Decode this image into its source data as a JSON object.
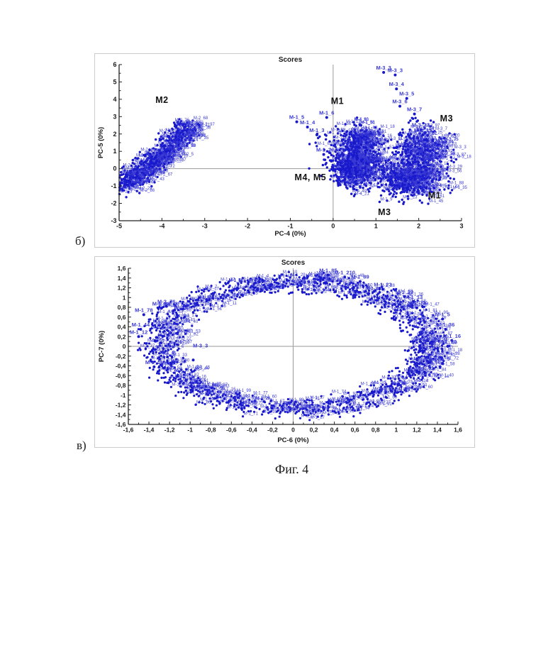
{
  "figure": {
    "sublabels": [
      "б)",
      "в)"
    ],
    "caption": "Фиг. 4"
  },
  "colors": {
    "point": "#1818cc",
    "point_label": "#3c3cd4",
    "axis": "#222222",
    "zero_line": "#9a9a9a",
    "annotation": "#111111",
    "frame": "#cccccc"
  },
  "chart_data": [
    {
      "type": "scatter",
      "title": "Scores",
      "xlabel": "PC-4 (0%)",
      "ylabel": "PC-5 (0%)",
      "xlim": [
        -5,
        3
      ],
      "ylim": [
        -3,
        6
      ],
      "xtick_values": [
        -5,
        -4,
        -3,
        -2,
        -1,
        0,
        1,
        2,
        3
      ],
      "xtick_labels": [
        "-5",
        "-4",
        "-3",
        "-2",
        "-1",
        "0",
        "1",
        "2",
        "3"
      ],
      "ytick_values": [
        -3,
        -2,
        -1,
        0,
        1,
        2,
        3,
        4,
        5,
        6
      ],
      "ytick_labels": [
        "-3",
        "-2",
        "-1",
        "0",
        "1",
        "2",
        "3",
        "4",
        "5",
        "6"
      ],
      "minor_step": 0.5,
      "grid": false,
      "zero_lines": true,
      "legend": "none",
      "point_radius": 1.7,
      "clusters": [
        {
          "name": "M2-band",
          "shape": "band",
          "label_prefix": "M-2",
          "seed": 11,
          "count": 520,
          "label_fraction": 0.45,
          "from": [
            -4.95,
            -1.0
          ],
          "to": [
            -3.35,
            2.5
          ],
          "spread": [
            0.17,
            0.3
          ],
          "sag": 0.25
        },
        {
          "name": "M4-M5-core",
          "shape": "gauss",
          "label_prefix": "M-4",
          "seed": 21,
          "count": 500,
          "label_fraction": 0.4,
          "center": [
            0.45,
            0.1
          ],
          "sigma": [
            0.27,
            0.62
          ]
        },
        {
          "name": "M1-upper-mid",
          "shape": "gauss",
          "label_prefix": "M-1",
          "seed": 22,
          "count": 240,
          "label_fraction": 0.45,
          "center": [
            0.62,
            1.5
          ],
          "sigma": [
            0.3,
            0.5
          ]
        },
        {
          "name": "right-core-M1",
          "shape": "gauss",
          "label_prefix": "M-1",
          "seed": 31,
          "count": 430,
          "label_fraction": 0.4,
          "center": [
            1.75,
            -0.6
          ],
          "sigma": [
            0.4,
            0.55
          ]
        },
        {
          "name": "right-upper-M3",
          "shape": "gauss",
          "label_prefix": "M-3",
          "seed": 32,
          "count": 300,
          "label_fraction": 0.45,
          "center": [
            2.0,
            1.0
          ],
          "sigma": [
            0.33,
            0.65
          ]
        },
        {
          "name": "strays-left",
          "shape": "gauss",
          "label_prefix": "M-1",
          "seed": 41,
          "count": 5,
          "label_fraction": 0,
          "center": [
            -0.33,
            1.7
          ],
          "sigma": [
            0.14,
            0.22
          ]
        },
        {
          "name": "strays-m3-trail",
          "shape": "gauss",
          "label_prefix": "M-3",
          "seed": 42,
          "count": 6,
          "label_fraction": 0,
          "center": [
            1.88,
            2.8
          ],
          "sigma": [
            0.08,
            0.12
          ]
        }
      ],
      "labeled_points": [
        {
          "label": "M-1_5",
          "x": -0.85,
          "y": 2.7
        },
        {
          "label": "M-1_4",
          "x": -0.6,
          "y": 2.4
        },
        {
          "label": "M-1_6",
          "x": -0.15,
          "y": 2.95
        },
        {
          "label": "M-1_3",
          "x": -0.38,
          "y": 1.95
        },
        {
          "label": "M-1_2",
          "x": -0.22,
          "y": 0.82
        },
        {
          "label": "M-3_3",
          "x": 1.18,
          "y": 5.55
        },
        {
          "label": "M-3_3",
          "x": 1.45,
          "y": 5.4
        },
        {
          "label": "M-3_4",
          "x": 1.48,
          "y": 4.6
        },
        {
          "label": "M-3_5",
          "x": 1.72,
          "y": 4.05
        },
        {
          "label": "M-3_6",
          "x": 1.56,
          "y": 3.6
        },
        {
          "label": "M-3_7",
          "x": 1.9,
          "y": 3.15
        },
        {
          "label": "M-3_13",
          "x": 2.05,
          "y": 2.25
        },
        {
          "label": "M-3_14",
          "x": 2.15,
          "y": 2.08
        },
        {
          "label": "M-3_15",
          "x": 2.1,
          "y": 1.95
        }
      ],
      "annotations": [
        {
          "text": "M2",
          "x": -4.0,
          "y": 3.95
        },
        {
          "text": "M1",
          "x": 0.1,
          "y": 3.9
        },
        {
          "text": "M3",
          "x": 2.65,
          "y": 2.9
        },
        {
          "text": "M4, M5",
          "x": -0.53,
          "y": -0.5
        },
        {
          "text": "M1",
          "x": 2.37,
          "y": -1.55
        },
        {
          "text": "M3",
          "x": 1.2,
          "y": -2.5
        }
      ]
    },
    {
      "type": "scatter",
      "title": "Scores",
      "xlabel": "PC-6 (0%)",
      "ylabel": "PC-7 (0%)",
      "xlim": [
        -1.6,
        1.6
      ],
      "ylim": [
        -1.6,
        1.6
      ],
      "xtick_values": [
        -1.6,
        -1.4,
        -1.2,
        -1,
        -0.8,
        -0.6,
        -0.4,
        -0.2,
        0,
        0.2,
        0.4,
        0.6,
        0.8,
        1,
        1.2,
        1.4,
        1.6
      ],
      "xtick_labels": [
        "-1,6",
        "-1,4",
        "-1,2",
        "-1",
        "-0,8",
        "-0,6",
        "-0,4",
        "-0,2",
        "0",
        "0,2",
        "0,4",
        "0,6",
        "0,8",
        "1",
        "1,2",
        "1,4",
        "1,6"
      ],
      "ytick_values": [
        -1.6,
        -1.4,
        -1.2,
        -1,
        -0.8,
        -0.6,
        -0.4,
        -0.2,
        0,
        0.2,
        0.4,
        0.6,
        0.8,
        1,
        1.2,
        1.4,
        1.6
      ],
      "ytick_labels": [
        "-1,6",
        "-1,4",
        "-1,2",
        "-1",
        "-0,8",
        "-0,6",
        "-0,4",
        "-0,2",
        "0",
        "0,2",
        "0,4",
        "0,6",
        "0,8",
        "1",
        "1,2",
        "1,4",
        "1,6"
      ],
      "minor_step": 0.1,
      "grid": false,
      "zero_lines": true,
      "legend": "none",
      "point_radius": 1.6,
      "clusters": [
        {
          "name": "annulus",
          "shape": "ring",
          "label_prefix": "M-1",
          "seed": 51,
          "count": 1400,
          "label_fraction": 0.38,
          "center": [
            0,
            0
          ],
          "r_inner": 1.04,
          "r_outer": 1.56
        }
      ],
      "labeled_points": [
        {
          "label": "M-3_3",
          "x": -0.97,
          "y": -0.28,
          "lx": -0.9,
          "ly": -0.02
        },
        {
          "label": "M-1_85",
          "x": 0.34,
          "y": 1.46
        },
        {
          "label": "M-1_210",
          "x": 0.5,
          "y": 1.42
        },
        {
          "label": "M-1_89",
          "x": 0.65,
          "y": 1.33
        },
        {
          "label": "M-1_23",
          "x": 0.87,
          "y": 1.17
        },
        {
          "label": "M-1_29",
          "x": 1.08,
          "y": 1.02
        },
        {
          "label": "M-1_13",
          "x": 1.17,
          "y": 0.92
        },
        {
          "label": "M-1_73",
          "x": 1.2,
          "y": 0.79
        },
        {
          "label": "M-1_5",
          "x": 1.45,
          "y": 0.56
        },
        {
          "label": "M-1_36",
          "x": 1.48,
          "y": 0.35
        },
        {
          "label": "M-1_16",
          "x": 1.54,
          "y": 0.12
        },
        {
          "label": "M-1_20",
          "x": 1.5,
          "y": 0.0
        },
        {
          "label": "M-1_9",
          "x": 1.45,
          "y": -0.35
        },
        {
          "label": "M-1_61",
          "x": 1.28,
          "y": -0.54
        },
        {
          "label": "M-1_78",
          "x": -1.45,
          "y": 0.65
        },
        {
          "label": "M-1_88",
          "x": -1.28,
          "y": 0.78
        },
        {
          "label": "M-2_76",
          "x": -1.23,
          "y": 0.82
        },
        {
          "label": "M-1_44",
          "x": -1.48,
          "y": 0.35
        },
        {
          "label": "M-1_12",
          "x": -1.5,
          "y": 0.2
        },
        {
          "label": "M-1_8",
          "x": -1.22,
          "y": -0.22
        },
        {
          "label": "M-1_11",
          "x": -1.35,
          "y": -0.42
        }
      ],
      "annotations": []
    }
  ]
}
